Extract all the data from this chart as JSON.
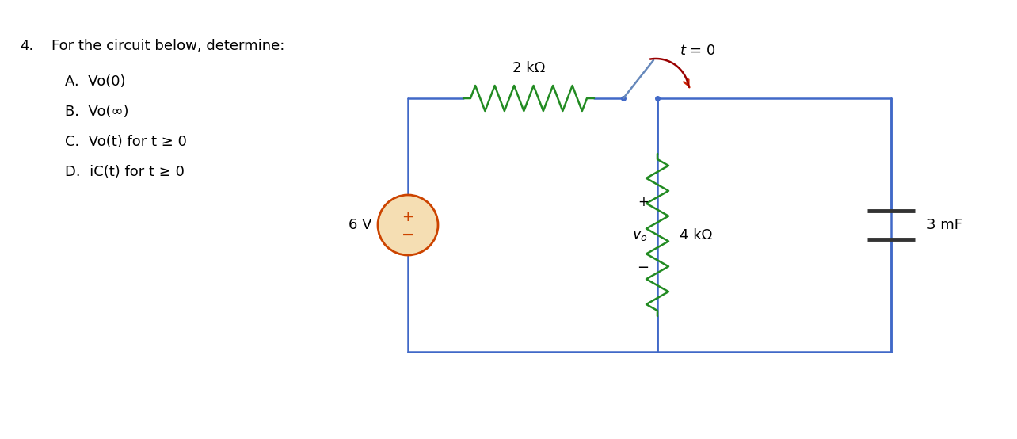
{
  "background_color": "#ffffff",
  "circuit_color": "#4169C8",
  "resistor_color": "#228B22",
  "source_fill": "#F5DEB3",
  "source_edge": "#CC4400",
  "switch_arm_color": "#6688BB",
  "switch_arc_color": "#990000",
  "switch_arrow_color": "#CC2200",
  "t0_label": "$t$ = 0",
  "res2k_label": "2 kΩ",
  "res4k_label": "4 kΩ",
  "cap_label": "3 mF",
  "src_label": "6 V",
  "vo_label": "$v_o$",
  "vo_plus": "+",
  "vo_minus": "−",
  "problem_number": "4.",
  "problem_title": "For the circuit below, determine:",
  "sub_items": [
    "A.  Vo(0)",
    "B.  Vo(∞)",
    "C.  Vo(t) for t ≥ 0",
    "D.  iC(t) for t ≥ 0"
  ]
}
